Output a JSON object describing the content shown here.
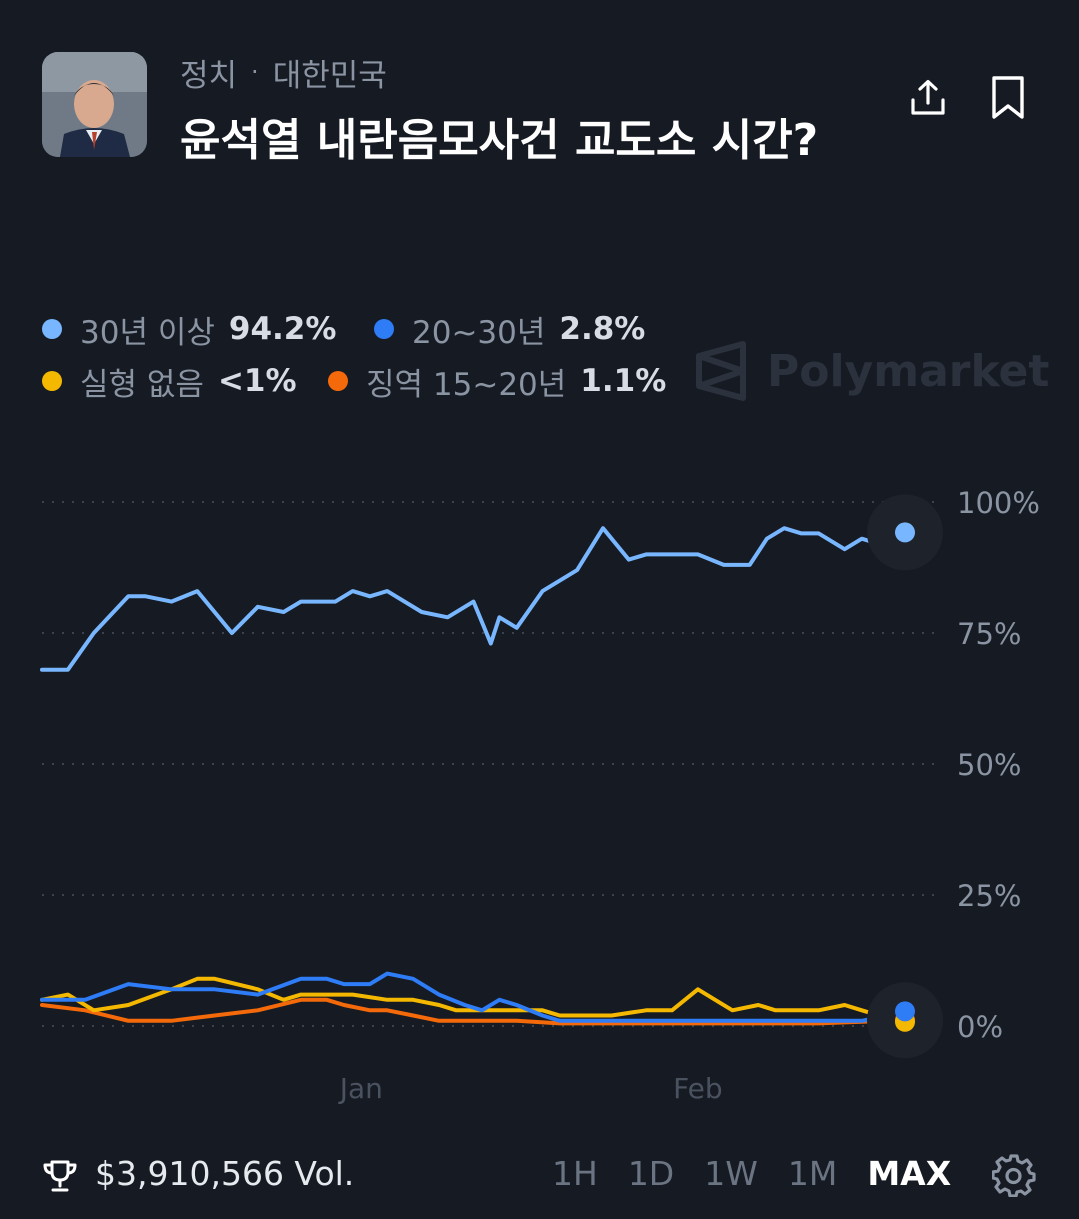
{
  "header": {
    "category": "정치",
    "region": "대한민국",
    "title": "윤석열 내란음모사건 교도소 시간?"
  },
  "legend": [
    {
      "label": "30년 이상",
      "value": "94.2%",
      "color": "#78b7ff"
    },
    {
      "label": "20~30년",
      "value": "2.8%",
      "color": "#2e7cf6"
    },
    {
      "label": "실형 없음",
      "value": "<1%",
      "color": "#f5b800"
    },
    {
      "label": "징역 15~20년",
      "value": "1.1%",
      "color": "#f46a0a"
    }
  ],
  "watermark": "Polymarket",
  "chart_data": {
    "type": "line",
    "y_ticks": [
      "100%",
      "75%",
      "50%",
      "25%",
      "0%"
    ],
    "x_ticks": [
      "Jan",
      "Feb"
    ],
    "ylim": [
      0,
      100
    ],
    "grid": true,
    "series": [
      {
        "name": "30년 이상",
        "color": "#78b7ff",
        "x": [
          0,
          3,
          6,
          10,
          12,
          15,
          18,
          22,
          25,
          28,
          30,
          32,
          34,
          36,
          38,
          40,
          44,
          47,
          50,
          52,
          53,
          55,
          58,
          60,
          62,
          65,
          68,
          70,
          73,
          76,
          79,
          82,
          84,
          86,
          88,
          90,
          93,
          95,
          97,
          99,
          100
        ],
        "values": [
          68,
          68,
          75,
          82,
          82,
          81,
          83,
          75,
          80,
          79,
          81,
          81,
          81,
          83,
          82,
          83,
          79,
          78,
          81,
          73,
          78,
          76,
          83,
          85,
          87,
          95,
          89,
          90,
          90,
          90,
          88,
          88,
          93,
          95,
          94,
          94,
          91,
          93,
          92,
          91,
          94.2
        ]
      },
      {
        "name": "20~30년",
        "color": "#2e7cf6",
        "x": [
          0,
          5,
          10,
          15,
          20,
          25,
          30,
          33,
          35,
          38,
          40,
          43,
          46,
          49,
          51,
          53,
          55,
          58,
          60,
          63,
          66,
          70,
          75,
          80,
          85,
          90,
          95,
          98,
          100
        ],
        "values": [
          5,
          5,
          8,
          7,
          7,
          6,
          9,
          9,
          8,
          8,
          10,
          9,
          6,
          4,
          3,
          5,
          4,
          2,
          1,
          1,
          1,
          1,
          1,
          1,
          1,
          1,
          1,
          2,
          2.8
        ]
      },
      {
        "name": "실형 없음",
        "color": "#f5b800",
        "x": [
          0,
          3,
          6,
          10,
          15,
          18,
          20,
          25,
          28,
          30,
          33,
          36,
          40,
          43,
          46,
          48,
          50,
          53,
          55,
          58,
          60,
          63,
          66,
          70,
          73,
          76,
          78,
          80,
          83,
          85,
          88,
          90,
          93,
          95,
          97,
          100
        ],
        "values": [
          5,
          6,
          3,
          4,
          7,
          9,
          9,
          7,
          5,
          6,
          6,
          6,
          5,
          5,
          4,
          3,
          3,
          3,
          3,
          3,
          2,
          2,
          2,
          3,
          3,
          7,
          5,
          3,
          4,
          3,
          3,
          3,
          4,
          3,
          2,
          0.8
        ]
      },
      {
        "name": "징역 15~20년",
        "color": "#f46a0a",
        "x": [
          0,
          5,
          10,
          15,
          20,
          25,
          30,
          33,
          35,
          38,
          40,
          43,
          46,
          49,
          52,
          55,
          60,
          65,
          70,
          75,
          80,
          85,
          90,
          95,
          100
        ],
        "values": [
          4,
          3,
          1,
          1,
          2,
          3,
          5,
          5,
          4,
          3,
          3,
          2,
          1,
          1,
          1,
          1,
          0.5,
          0.5,
          0.5,
          0.5,
          0.5,
          0.5,
          0.5,
          0.8,
          1.1
        ]
      }
    ]
  },
  "footer": {
    "volume": "$3,910,566 Vol.",
    "ranges": [
      "1H",
      "1D",
      "1W",
      "1M",
      "MAX"
    ],
    "active_range": "MAX"
  }
}
